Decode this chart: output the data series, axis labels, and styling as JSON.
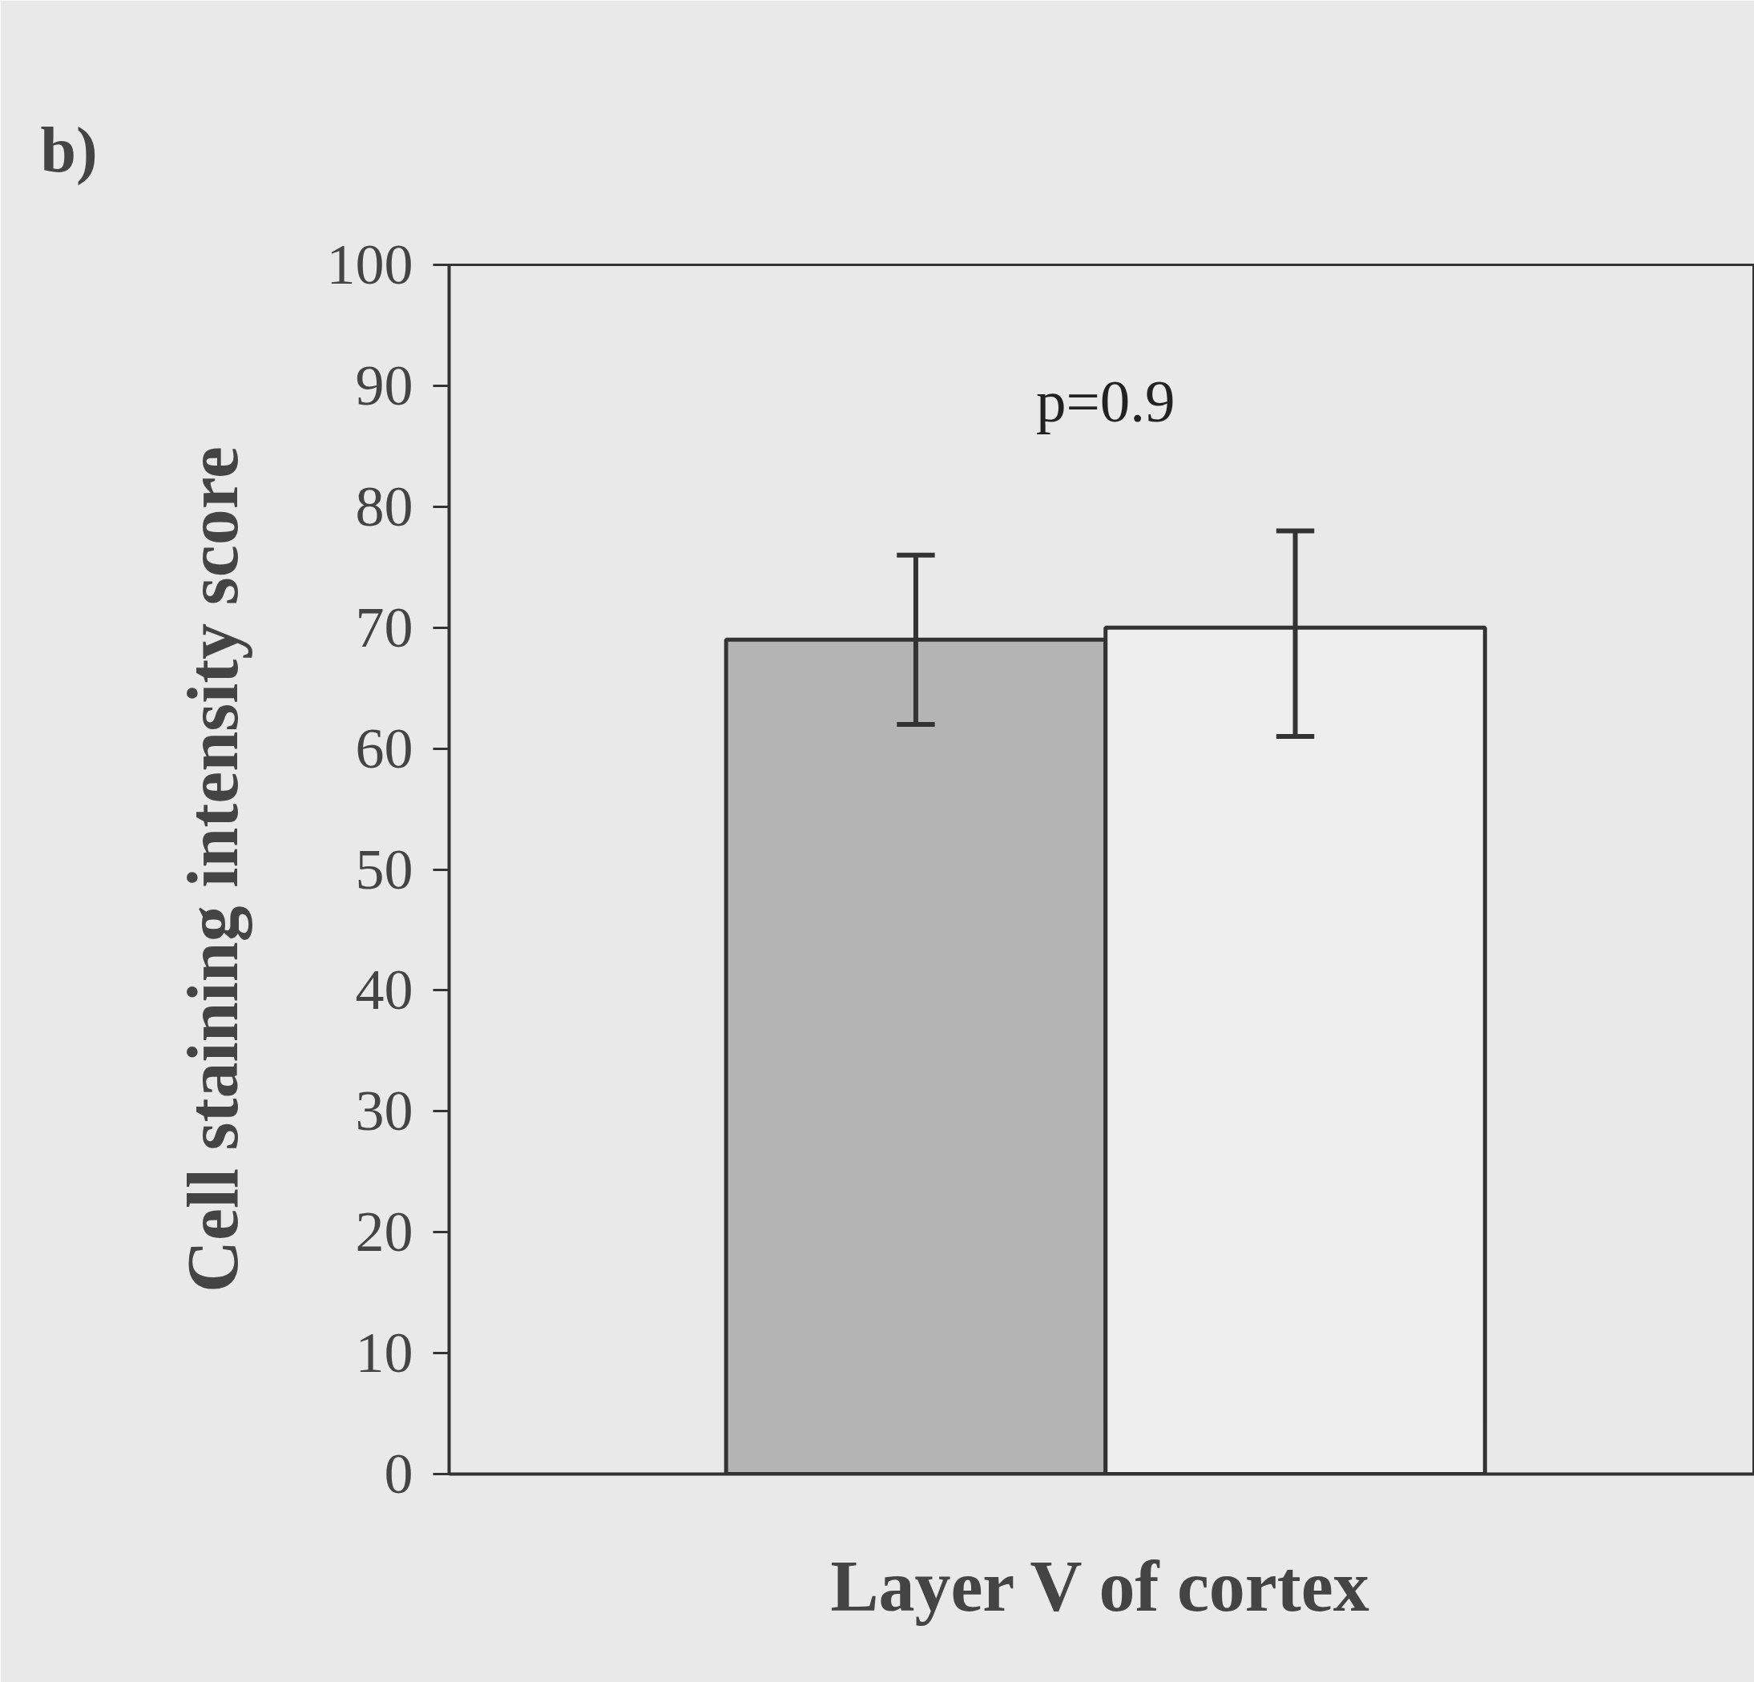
{
  "chart_data": {
    "type": "bar",
    "title": "b)",
    "xlabel": "Layer V of cortex",
    "ylabel": "Cell staining intensity score",
    "categories": [
      null,
      null
    ],
    "values": [
      69,
      70
    ],
    "colors": [
      "#b4b4b4",
      "#eeeeee"
    ],
    "errors": [
      [
        62,
        76
      ],
      [
        61,
        78
      ]
    ],
    "annotations": [
      "p=0.9"
    ],
    "ylim": [
      0,
      100
    ],
    "yticks": [
      0,
      10,
      20,
      30,
      40,
      50,
      60,
      70,
      80,
      90,
      100
    ],
    "grid": false,
    "tick_labels": "y"
  }
}
